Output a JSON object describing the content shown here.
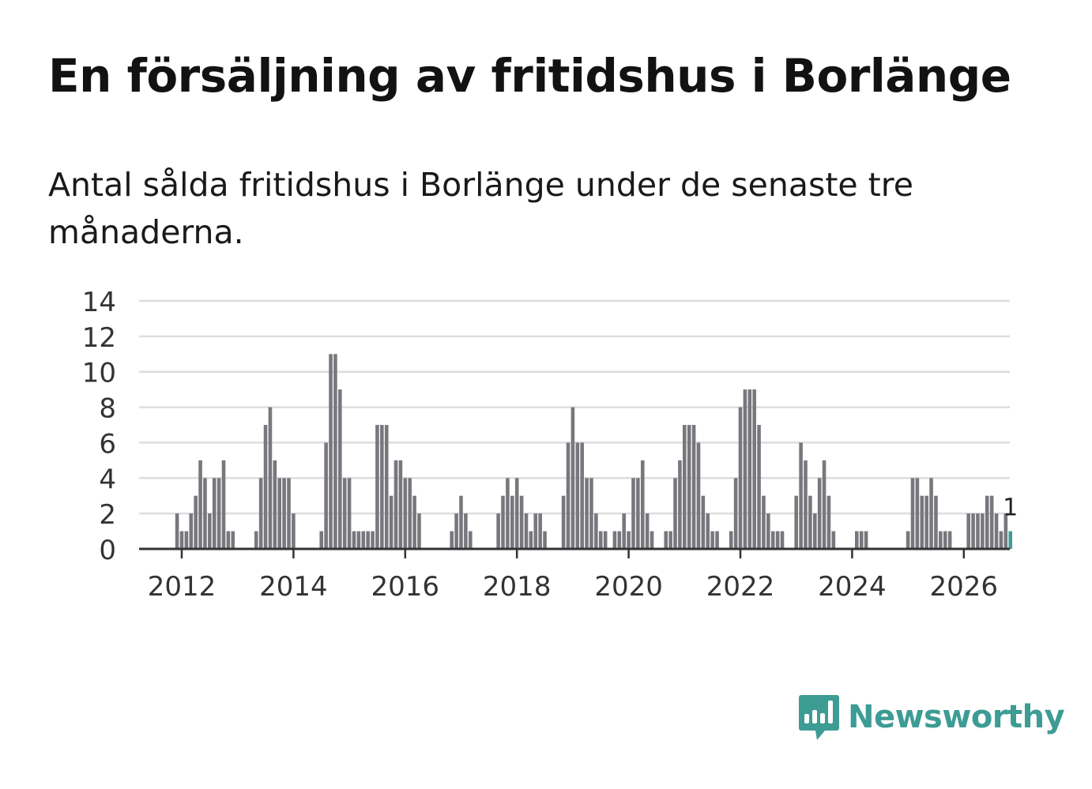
{
  "title": "En försäljning av fritidshus i Borlänge",
  "subtitle": "Antal sålda fritidshus i Borlänge under de senaste tre månaderna.",
  "brand": {
    "name": "Newsworthy",
    "color": "#3d9c94",
    "icon": "newsworthy-bar-chart-speech-bubble-icon"
  },
  "chart_data": {
    "type": "bar",
    "x_start": "2011-12",
    "frequency": "monthly",
    "values": [
      2,
      1,
      1,
      2,
      3,
      5,
      4,
      2,
      4,
      4,
      5,
      1,
      1,
      0,
      0,
      0,
      0,
      1,
      4,
      7,
      8,
      5,
      4,
      4,
      4,
      2,
      0,
      0,
      0,
      0,
      0,
      1,
      6,
      11,
      11,
      9,
      4,
      4,
      1,
      1,
      1,
      1,
      1,
      7,
      7,
      7,
      3,
      5,
      5,
      4,
      4,
      3,
      2,
      0,
      0,
      0,
      0,
      0,
      0,
      1,
      2,
      3,
      2,
      1,
      0,
      0,
      0,
      0,
      0,
      2,
      3,
      4,
      3,
      4,
      3,
      2,
      1,
      2,
      2,
      1,
      0,
      0,
      0,
      3,
      6,
      8,
      6,
      6,
      4,
      4,
      2,
      1,
      1,
      0,
      1,
      1,
      2,
      1,
      4,
      4,
      5,
      2,
      1,
      0,
      0,
      1,
      1,
      4,
      5,
      7,
      7,
      7,
      6,
      3,
      2,
      1,
      1,
      0,
      0,
      1,
      4,
      8,
      9,
      9,
      9,
      7,
      3,
      2,
      1,
      1,
      1,
      0,
      0,
      3,
      6,
      5,
      3,
      2,
      4,
      5,
      3,
      1,
      0,
      0,
      0,
      0,
      1,
      1,
      1,
      0,
      0,
      0,
      0,
      0,
      0,
      0,
      0,
      1,
      4,
      4,
      3,
      3,
      4,
      3,
      1,
      1,
      1,
      0,
      0,
      0,
      2,
      2,
      2,
      2,
      3,
      3,
      2,
      1,
      2,
      1
    ],
    "highlight_last": true,
    "last_label": "1",
    "x_ticks": [
      "2012",
      "2014",
      "2016",
      "2018",
      "2020",
      "2022",
      "2024",
      "2026"
    ],
    "y_ticks": [
      "0",
      "2",
      "4",
      "6",
      "8",
      "10",
      "12",
      "14"
    ],
    "ylim": [
      0,
      14
    ],
    "grid": true,
    "bar_color": "#78777d",
    "highlight_color": "#3d9c94",
    "grid_color": "#dddddd"
  }
}
